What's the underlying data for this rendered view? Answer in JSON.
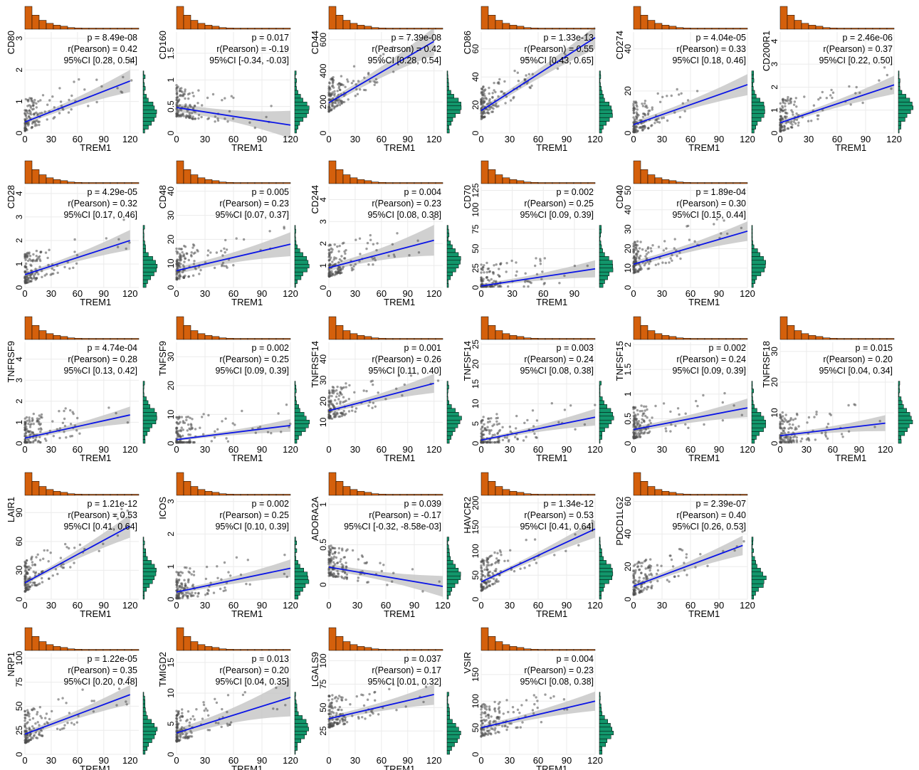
{
  "figure": {
    "colors": {
      "points": "#4d4d4d",
      "line": "#0a14e6",
      "band": "#c8c8c8",
      "top_histogram": "#d4600c",
      "side_histogram": "#12966b",
      "grid": "#ebebeb"
    }
  },
  "chart_data": [
    {
      "type": "scatter",
      "xlabel": "TREM1",
      "ylabel": "CD80",
      "xlim": [
        0,
        130
      ],
      "ylim": [
        0,
        3.2
      ],
      "xticks": [
        0,
        30,
        60,
        90,
        120
      ],
      "yticks": [
        0,
        1,
        2,
        3
      ],
      "fit": {
        "x": [
          0,
          120
        ],
        "y": [
          0.35,
          1.65
        ]
      },
      "ci_band": {
        "lower": [
          0.28,
          1.3
        ],
        "upper": [
          0.42,
          2.0
        ]
      },
      "annotations": [
        "p = 8.49e-08",
        "r(Pearson) = 0.42",
        "95%CI [0.28, 0.54]"
      ]
    },
    {
      "type": "scatter",
      "xlabel": "TREM1",
      "ylabel": "CD160",
      "xlim": [
        0,
        120
      ],
      "ylim": [
        0,
        1.9
      ],
      "xticks": [
        0,
        30,
        60,
        90,
        120
      ],
      "yticks": [
        0,
        0.5,
        1.0,
        1.5
      ],
      "fit": {
        "x": [
          0,
          120
        ],
        "y": [
          0.48,
          0.15
        ]
      },
      "ci_band": {
        "lower": [
          0.4,
          -0.1
        ],
        "upper": [
          0.56,
          0.42
        ]
      },
      "annotations": [
        "p = 0.017",
        "r(Pearson) = -0.19",
        "95%CI [-0.34, -0.03]"
      ]
    },
    {
      "type": "scatter",
      "xlabel": "TREM1",
      "ylabel": "CD44",
      "xlim": [
        0,
        130
      ],
      "ylim": [
        0,
        650
      ],
      "xticks": [
        0,
        30,
        60,
        90,
        120
      ],
      "yticks": [
        0,
        200,
        400,
        600
      ],
      "fit": {
        "x": [
          0,
          120
        ],
        "y": [
          195,
          590
        ]
      },
      "ci_band": {
        "lower": [
          175,
          500
        ],
        "upper": [
          215,
          680
        ]
      },
      "annotations": [
        "p = 7.39e-08",
        "r(Pearson) = 0.42",
        "95%CI [0.28, 0.54]"
      ]
    },
    {
      "type": "scatter",
      "xlabel": "TREM1",
      "ylabel": "CD86",
      "xlim": [
        0,
        120
      ],
      "ylim": [
        0,
        72
      ],
      "xticks": [
        0,
        30,
        60,
        90,
        120
      ],
      "yticks": [
        0,
        20,
        40,
        60
      ],
      "fit": {
        "x": [
          0,
          120
        ],
        "y": [
          16,
          68
        ]
      },
      "ci_band": {
        "lower": [
          14,
          60
        ],
        "upper": [
          18,
          76
        ]
      },
      "annotations": [
        "p = 1.33e-13",
        "r(Pearson) = 0.55",
        "95%CI [0.43, 0.65]"
      ]
    },
    {
      "type": "scatter",
      "xlabel": "TREM1",
      "ylabel": "CD274",
      "xlim": [
        0,
        120
      ],
      "ylim": [
        0,
        48
      ],
      "xticks": [
        0,
        30,
        60,
        90,
        120
      ],
      "yticks": [
        0,
        20,
        40
      ],
      "fit": {
        "x": [
          0,
          120
        ],
        "y": [
          4,
          23
        ]
      },
      "ci_band": {
        "lower": [
          3,
          18
        ],
        "upper": [
          5.5,
          28
        ]
      },
      "annotations": [
        "p = 4.04e-05",
        "r(Pearson) = 0.33",
        "95%CI [0.18, 0.46]"
      ]
    },
    {
      "type": "scatter",
      "xlabel": "TREM1",
      "ylabel": "CD200R1",
      "xlim": [
        0,
        120
      ],
      "ylim": [
        0,
        4.4
      ],
      "xticks": [
        0,
        30,
        60,
        90,
        120
      ],
      "yticks": [
        0,
        1,
        2,
        3,
        4
      ],
      "fit": {
        "x": [
          0,
          120
        ],
        "y": [
          0.45,
          2.1
        ]
      },
      "ci_band": {
        "lower": [
          0.35,
          1.7
        ],
        "upper": [
          0.55,
          2.5
        ]
      },
      "annotations": [
        "p = 2.46e-06",
        "r(Pearson) = 0.37",
        "95%CI [0.22, 0.50]"
      ]
    },
    {
      "type": "scatter",
      "xlabel": "TREM1",
      "ylabel": "CD28",
      "xlim": [
        0,
        130
      ],
      "ylim": [
        0,
        4.3
      ],
      "xticks": [
        0,
        30,
        60,
        90,
        120
      ],
      "yticks": [
        0,
        1,
        2,
        3,
        4
      ],
      "fit": {
        "x": [
          0,
          120
        ],
        "y": [
          0.55,
          2.0
        ]
      },
      "ci_band": {
        "lower": [
          0.45,
          1.6
        ],
        "upper": [
          0.65,
          2.45
        ]
      },
      "annotations": [
        "p = 4.29e-05",
        "r(Pearson) = 0.32",
        "95%CI [0.17, 0.46]"
      ]
    },
    {
      "type": "scatter",
      "xlabel": "TREM1",
      "ylabel": "CD48",
      "xlim": [
        0,
        120
      ],
      "ylim": [
        0,
        42
      ],
      "xticks": [
        0,
        30,
        60,
        90,
        120
      ],
      "yticks": [
        0,
        10,
        20,
        30,
        40
      ],
      "fit": {
        "x": [
          0,
          120
        ],
        "y": [
          7,
          18
        ]
      },
      "ci_band": {
        "lower": [
          5.5,
          13
        ],
        "upper": [
          8.5,
          23
        ]
      },
      "annotations": [
        "p = 0.005",
        "r(Pearson) = 0.23",
        "95%CI [0.07, 0.37]"
      ]
    },
    {
      "type": "scatter",
      "xlabel": "TREM1",
      "ylabel": "CD244",
      "xlim": [
        0,
        130
      ],
      "ylim": [
        0,
        4.6
      ],
      "xticks": [
        0,
        30,
        60,
        90,
        120
      ],
      "yticks": [
        0,
        1,
        2,
        3,
        4
      ],
      "fit": {
        "x": [
          0,
          120
        ],
        "y": [
          0.9,
          2.15
        ]
      },
      "ci_band": {
        "lower": [
          0.75,
          1.45
        ],
        "upper": [
          1.05,
          2.85
        ]
      },
      "annotations": [
        "p = 0.004",
        "r(Pearson) = 0.23",
        "95%CI [0.08, 0.38]"
      ]
    },
    {
      "type": "scatter",
      "xlabel": "TREM1",
      "ylabel": "CD70",
      "xlim": [
        0,
        110
      ],
      "ylim": [
        0,
        130
      ],
      "xticks": [
        0,
        30,
        60,
        90
      ],
      "yticks": [
        0,
        25,
        50,
        75,
        100,
        125
      ],
      "fit": {
        "x": [
          0,
          110
        ],
        "y": [
          2,
          24
        ]
      },
      "ci_band": {
        "lower": [
          0,
          13
        ],
        "upper": [
          5,
          35
        ]
      },
      "annotations": [
        "p = 0.002",
        "r(Pearson) = 0.25",
        "95%CI [0.09, 0.39]"
      ]
    },
    {
      "type": "scatter",
      "xlabel": "TREM1",
      "ylabel": "CD40",
      "xlim": [
        0,
        120
      ],
      "ylim": [
        0,
        52
      ],
      "xticks": [
        0,
        30,
        60,
        90,
        120
      ],
      "yticks": [
        0,
        10,
        20,
        30,
        40,
        50
      ],
      "fit": {
        "x": [
          0,
          120
        ],
        "y": [
          12,
          29
        ]
      },
      "ci_band": {
        "lower": [
          10.5,
          24
        ],
        "upper": [
          13.5,
          34
        ]
      },
      "annotations": [
        "p = 1.89e-04",
        "r(Pearson) = 0.30",
        "95%CI [0.15, 0.44]"
      ]
    },
    {
      "type": "scatter",
      "xlabel": "TREM1",
      "ylabel": "TNFRSF9",
      "xlim": [
        0,
        130
      ],
      "ylim": [
        0,
        4.8
      ],
      "xticks": [
        0,
        30,
        60,
        90,
        120
      ],
      "yticks": [
        0,
        1,
        2,
        3,
        4
      ],
      "fit": {
        "x": [
          0,
          120
        ],
        "y": [
          0.25,
          1.35
        ]
      },
      "ci_band": {
        "lower": [
          0.15,
          0.95
        ],
        "upper": [
          0.35,
          1.75
        ]
      },
      "annotations": [
        "p = 4.74e-04",
        "r(Pearson) = 0.28",
        "95%CI [0.13, 0.42]"
      ]
    },
    {
      "type": "scatter",
      "xlabel": "TREM1",
      "ylabel": "TNFSF9",
      "xlim": [
        0,
        120
      ],
      "ylim": [
        0,
        35
      ],
      "xticks": [
        0,
        30,
        60,
        90,
        120
      ],
      "yticks": [
        0,
        10,
        20,
        30
      ],
      "fit": {
        "x": [
          0,
          120
        ],
        "y": [
          1.3,
          6.2
        ]
      },
      "ci_band": {
        "lower": [
          0.8,
          4.0
        ],
        "upper": [
          1.8,
          8.4
        ]
      },
      "annotations": [
        "p = 0.002",
        "r(Pearson) = 0.25",
        "95%CI [0.09, 0.39]"
      ]
    },
    {
      "type": "scatter",
      "xlabel": "TREM1",
      "ylabel": "TNFRSF14",
      "xlim": [
        0,
        130
      ],
      "ylim": [
        0,
        48
      ],
      "xticks": [
        0,
        30,
        60,
        90,
        120
      ],
      "yticks": [
        10,
        20,
        30,
        40
      ],
      "fit": {
        "x": [
          0,
          120
        ],
        "y": [
          15.5,
          28.5
        ]
      },
      "ci_band": {
        "lower": [
          14.3,
          24
        ],
        "upper": [
          16.7,
          33
        ]
      },
      "annotations": [
        "p = 0.001",
        "r(Pearson) = 0.26",
        "95%CI [0.11, 0.40]"
      ]
    },
    {
      "type": "scatter",
      "xlabel": "TREM1",
      "ylabel": "TNFSF14",
      "xlim": [
        0,
        120
      ],
      "ylim": [
        0,
        25.5
      ],
      "xticks": [
        0,
        30,
        60,
        90,
        120
      ],
      "yticks": [
        0,
        5,
        10,
        15,
        20,
        25
      ],
      "fit": {
        "x": [
          0,
          120
        ],
        "y": [
          0.8,
          6.6
        ]
      },
      "ci_band": {
        "lower": [
          0.4,
          4.5
        ],
        "upper": [
          1.2,
          8.7
        ]
      },
      "annotations": [
        "p = 0.003",
        "r(Pearson) = 0.24",
        "95%CI [0.08, 0.38]"
      ]
    },
    {
      "type": "scatter",
      "xlabel": "TREM1",
      "ylabel": "TNFSF15",
      "xlim": [
        0,
        120
      ],
      "ylim": [
        0,
        2.05
      ],
      "xticks": [
        0,
        30,
        60,
        90,
        120
      ],
      "yticks": [
        0,
        0.5,
        1.0,
        1.5,
        2.0
      ],
      "fit": {
        "x": [
          0,
          120
        ],
        "y": [
          0.28,
          0.72
        ]
      },
      "ci_band": {
        "lower": [
          0.22,
          0.53
        ],
        "upper": [
          0.34,
          0.91
        ]
      },
      "annotations": [
        "p = 0.002",
        "r(Pearson) = 0.24",
        "95%CI [0.09, 0.39]"
      ]
    },
    {
      "type": "scatter",
      "xlabel": "TREM1",
      "ylabel": "TNFRSF18",
      "xlim": [
        0,
        130
      ],
      "ylim": [
        0,
        33
      ],
      "xticks": [
        0,
        30,
        60,
        90,
        120
      ],
      "yticks": [
        0,
        10,
        20,
        30
      ],
      "fit": {
        "x": [
          0,
          120
        ],
        "y": [
          2.5,
          6.6
        ]
      },
      "ci_band": {
        "lower": [
          1.8,
          4.0
        ],
        "upper": [
          3.2,
          9.2
        ]
      },
      "annotations": [
        "p = 0.015",
        "r(Pearson) = 0.20",
        "95%CI [0.04, 0.34]"
      ]
    },
    {
      "type": "scatter",
      "xlabel": "TREM1",
      "ylabel": "LAIR1",
      "xlim": [
        0,
        130
      ],
      "ylim": [
        0,
        105
      ],
      "xticks": [
        0,
        30,
        60,
        90,
        120
      ],
      "yticks": [
        0,
        30,
        60,
        90
      ],
      "fit": {
        "x": [
          0,
          120
        ],
        "y": [
          17,
          76
        ]
      },
      "ci_band": {
        "lower": [
          15,
          64
        ],
        "upper": [
          19,
          88
        ]
      },
      "annotations": [
        "p = 1.21e-12",
        "r(Pearson) = 0.53",
        "95%CI [0.41, 0.64]"
      ]
    },
    {
      "type": "scatter",
      "xlabel": "TREM1",
      "ylabel": "ICOS",
      "xlim": [
        0,
        120
      ],
      "ylim": [
        0,
        3.1
      ],
      "xticks": [
        0,
        30,
        60,
        90,
        120
      ],
      "yticks": [
        0,
        1,
        2,
        3
      ],
      "fit": {
        "x": [
          0,
          120
        ],
        "y": [
          0.22,
          0.95
        ]
      },
      "ci_band": {
        "lower": [
          0.15,
          0.68
        ],
        "upper": [
          0.29,
          1.22
        ]
      },
      "annotations": [
        "p = 0.002",
        "r(Pearson) = 0.25",
        "95%CI [0.10, 0.39]"
      ]
    },
    {
      "type": "scatter",
      "xlabel": "TREM1",
      "ylabel": "ADORA2A",
      "xlim": [
        0,
        120
      ],
      "ylim": [
        -0.18,
        1.08
      ],
      "xticks": [
        0,
        30,
        60,
        90,
        120
      ],
      "yticks": [
        0,
        0.5,
        1.0
      ],
      "fit": {
        "x": [
          0,
          120
        ],
        "y": [
          0.22,
          -0.02
        ]
      },
      "ci_band": {
        "lower": [
          0.18,
          -0.15
        ],
        "upper": [
          0.26,
          0.11
        ]
      },
      "annotations": [
        "p = 0.039",
        "r(Pearson) = -0.17",
        "95%CI [-0.32, -8.58e-03]"
      ]
    },
    {
      "type": "scatter",
      "xlabel": "TREM1",
      "ylabel": "HAVCR2",
      "xlim": [
        0,
        120
      ],
      "ylim": [
        0,
        210
      ],
      "xticks": [
        0,
        30,
        60,
        90,
        120
      ],
      "yticks": [
        0,
        50,
        100,
        150,
        200
      ],
      "fit": {
        "x": [
          0,
          120
        ],
        "y": [
          36,
          146
        ]
      },
      "ci_band": {
        "lower": [
          32,
          128
        ],
        "upper": [
          40,
          164
        ]
      },
      "annotations": [
        "p = 1.34e-12",
        "r(Pearson) = 0.53",
        "95%CI [0.41, 0.64]"
      ]
    },
    {
      "type": "scatter",
      "xlabel": "TREM1",
      "ylabel": "PDCD1LG2",
      "xlim": [
        0,
        120
      ],
      "ylim": [
        0,
        62
      ],
      "xticks": [
        0,
        30,
        60,
        90,
        120
      ],
      "yticks": [
        0,
        20,
        40,
        60
      ],
      "fit": {
        "x": [
          0,
          115
        ],
        "y": [
          8,
          33
        ]
      },
      "ci_band": {
        "lower": [
          6.5,
          27
        ],
        "upper": [
          9.5,
          39
        ]
      },
      "annotations": [
        "p = 2.39e-07",
        "r(Pearson) = 0.40",
        "95%CI [0.26, 0.53]"
      ]
    },
    {
      "type": "scatter",
      "xlabel": "TREM1",
      "ylabel": "NRP1",
      "xlim": [
        0,
        130
      ],
      "ylim": [
        0,
        105
      ],
      "xticks": [
        0,
        30,
        60,
        90,
        120
      ],
      "yticks": [
        0,
        25,
        50,
        75,
        100
      ],
      "fit": {
        "x": [
          0,
          120
        ],
        "y": [
          21,
          62
        ]
      },
      "ci_band": {
        "lower": [
          18,
          52
        ],
        "upper": [
          24,
          72
        ]
      },
      "annotations": [
        "p = 1.22e-05",
        "r(Pearson) = 0.35",
        "95%CI [0.20, 0.48]"
      ]
    },
    {
      "type": "scatter",
      "xlabel": "TREM1",
      "ylabel": "TMIGD2",
      "xlim": [
        0,
        120
      ],
      "ylim": [
        0,
        16.5
      ],
      "xticks": [
        0,
        30,
        60,
        90,
        120
      ],
      "yticks": [
        0,
        5,
        10,
        15
      ],
      "fit": {
        "x": [
          0,
          120
        ],
        "y": [
          3.5,
          9.3
        ]
      },
      "ci_band": {
        "lower": [
          2.8,
          6.2
        ],
        "upper": [
          4.2,
          12.4
        ]
      },
      "annotations": [
        "p = 0.013",
        "r(Pearson) = 0.20",
        "95%CI [0.04, 0.35]"
      ]
    },
    {
      "type": "scatter",
      "xlabel": "TREM1",
      "ylabel": "LGALS9",
      "xlim": [
        0,
        130
      ],
      "ylim": [
        0,
        108
      ],
      "xticks": [
        0,
        30,
        60,
        90,
        120
      ],
      "yticks": [
        25,
        50,
        75,
        100
      ],
      "fit": {
        "x": [
          0,
          120
        ],
        "y": [
          38,
          64
        ]
      },
      "ci_band": {
        "lower": [
          35,
          53
        ],
        "upper": [
          41,
          75
        ]
      },
      "annotations": [
        "p = 0.037",
        "r(Pearson) = 0.17",
        "95%CI [0.01, 0.32]"
      ]
    },
    {
      "type": "scatter",
      "xlabel": "TREM1",
      "ylabel": "VSIR",
      "xlim": [
        0,
        120
      ],
      "ylim": [
        0,
        190
      ],
      "xticks": [
        0,
        30,
        60,
        90,
        120
      ],
      "yticks": [
        0,
        50,
        100,
        150
      ],
      "fit": {
        "x": [
          0,
          120
        ],
        "y": [
          50,
          100
        ]
      },
      "ci_band": {
        "lower": [
          45,
          82
        ],
        "upper": [
          55,
          118
        ]
      },
      "annotations": [
        "p = 0.004",
        "r(Pearson) = 0.23",
        "95%CI [0.08, 0.38]"
      ]
    }
  ]
}
